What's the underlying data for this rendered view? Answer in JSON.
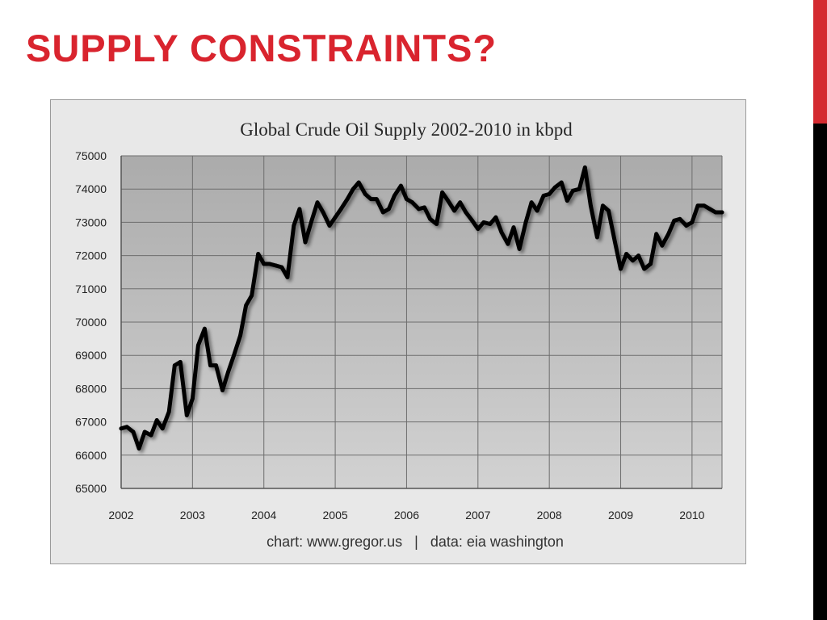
{
  "slide": {
    "title": "SUPPLY CONSTRAINTS?"
  },
  "colors": {
    "title": "#d9242e",
    "edge_red": "#d42a30",
    "edge_black": "#000000",
    "chart_frame_bg": "#e8e8e8",
    "plot_bg": "#bdbdbd",
    "gridlines": "#6e6e6e",
    "series_line": "#000000"
  },
  "chart_data": {
    "type": "line",
    "title": "Global Crude Oil Supply 2002-2010 in kbpd",
    "footer": "chart: www.gregor.us   |   data: eia washington",
    "xlabel": "",
    "ylabel": "",
    "xlim": [
      2002,
      2010.42
    ],
    "ylim": [
      65000,
      75000
    ],
    "x_ticks": [
      "2002",
      "2003",
      "2004",
      "2005",
      "2006",
      "2007",
      "2008",
      "2009",
      "2010"
    ],
    "y_ticks": [
      "65000",
      "66000",
      "67000",
      "68000",
      "69000",
      "70000",
      "71000",
      "72000",
      "73000",
      "74000",
      "75000"
    ],
    "grid": true,
    "legend": "none",
    "series": [
      {
        "x": [
          2002.0,
          2002.08,
          2002.17,
          2002.25,
          2002.33,
          2002.42,
          2002.5,
          2002.58,
          2002.67,
          2002.75,
          2002.83,
          2002.92,
          2003.0,
          2003.08,
          2003.17,
          2003.25,
          2003.33,
          2003.42,
          2003.5,
          2003.58,
          2003.67,
          2003.75,
          2003.83,
          2003.92,
          2004.0,
          2004.08,
          2004.17,
          2004.25,
          2004.33,
          2004.42,
          2004.5,
          2004.58,
          2004.67,
          2004.75,
          2004.83,
          2004.92,
          2005.0,
          2005.08,
          2005.17,
          2005.25,
          2005.33,
          2005.42,
          2005.5,
          2005.58,
          2005.67,
          2005.75,
          2005.83,
          2005.92,
          2006.0,
          2006.08,
          2006.17,
          2006.25,
          2006.33,
          2006.42,
          2006.5,
          2006.58,
          2006.67,
          2006.75,
          2006.83,
          2006.92,
          2007.0,
          2007.08,
          2007.17,
          2007.25,
          2007.33,
          2007.42,
          2007.5,
          2007.58,
          2007.67,
          2007.75,
          2007.83,
          2007.92,
          2008.0,
          2008.08,
          2008.17,
          2008.25,
          2008.33,
          2008.42,
          2008.5,
          2008.58,
          2008.67,
          2008.75,
          2008.83,
          2008.92,
          2009.0,
          2009.08,
          2009.17,
          2009.25,
          2009.33,
          2009.42,
          2009.5,
          2009.58,
          2009.67,
          2009.75,
          2009.83,
          2009.92,
          2010.0,
          2010.08,
          2010.17,
          2010.25,
          2010.33,
          2010.42
        ],
        "y": [
          66800,
          66850,
          66700,
          66200,
          66700,
          66600,
          67050,
          66800,
          67300,
          68700,
          68800,
          67200,
          67700,
          69300,
          69800,
          68700,
          68700,
          67950,
          68500,
          69000,
          69600,
          70500,
          70800,
          72050,
          71750,
          71750,
          71700,
          71650,
          71350,
          72900,
          73400,
          72400,
          73050,
          73600,
          73300,
          72900,
          73150,
          73400,
          73700,
          74000,
          74200,
          73850,
          73700,
          73700,
          73300,
          73400,
          73800,
          74100,
          73700,
          73600,
          73400,
          73450,
          73100,
          72950,
          73900,
          73650,
          73350,
          73600,
          73300,
          73050,
          72800,
          73000,
          72950,
          73150,
          72700,
          72350,
          72850,
          72200,
          73000,
          73600,
          73350,
          73800,
          73850,
          74050,
          74200,
          73650,
          73950,
          74000,
          74650,
          73500,
          72550,
          73500,
          73350,
          72400,
          71600,
          72050,
          71850,
          72000,
          71600,
          71750,
          72650,
          72300,
          72650,
          73050,
          73100,
          72900,
          73000,
          73500,
          73500,
          73400,
          73300,
          73300
        ]
      }
    ]
  }
}
